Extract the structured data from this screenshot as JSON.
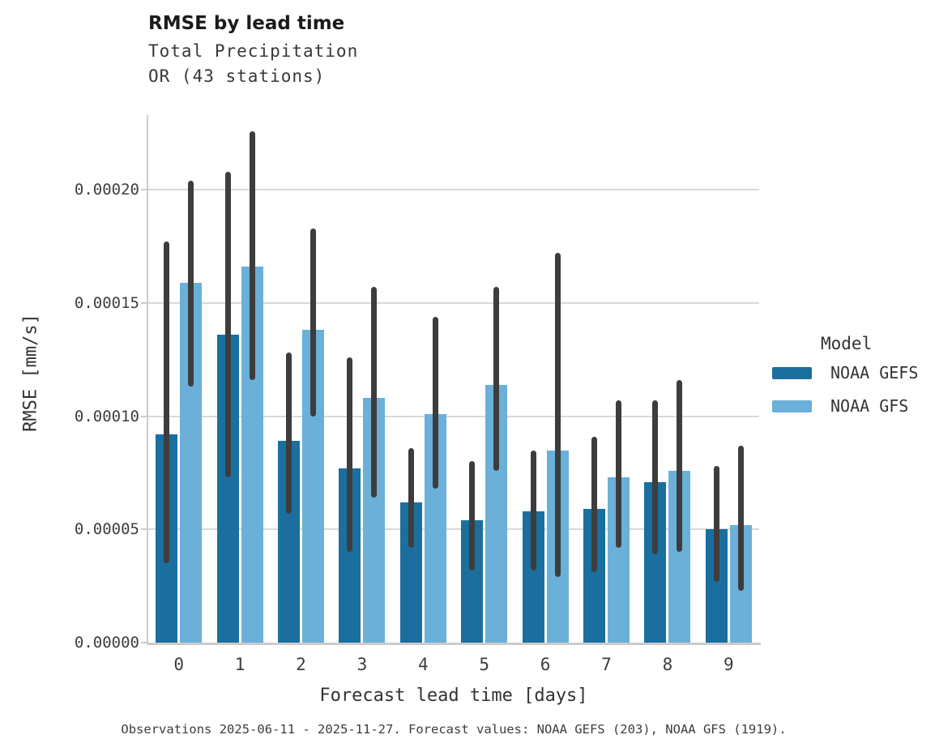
{
  "header": {
    "title": "RMSE by lead time",
    "subtitle_line1": "Total Precipitation",
    "subtitle_line2": "OR (43 stations)"
  },
  "axes": {
    "y_label": "RMSE [mm/s]",
    "x_label": "Forecast lead time [days]"
  },
  "legend": {
    "title": "Model",
    "entries": [
      {
        "label": "NOAA GEFS",
        "color": "#1a6f9f"
      },
      {
        "label": "NOAA GFS",
        "color": "#6bb0d9"
      }
    ]
  },
  "footer": {
    "caption": "Observations 2025-06-11 - 2025-11-27. Forecast values: NOAA GEFS (203), NOAA GFS (1919)."
  },
  "colors": {
    "gefs_bar": "#1a6f9f",
    "gfs_bar": "#6bb0d9",
    "error_bar": "#3d3d3d",
    "gridline": "#d9d9d9",
    "spine": "#cbcbcb",
    "background": "#ffffff"
  },
  "chart_data": {
    "type": "bar",
    "title": "RMSE by lead time",
    "subtitle": "Total Precipitation, OR (43 stations)",
    "xlabel": "Forecast lead time [days]",
    "ylabel": "RMSE [mm/s]",
    "categories": [
      "0",
      "1",
      "2",
      "3",
      "4",
      "5",
      "6",
      "7",
      "8",
      "9"
    ],
    "series": [
      {
        "name": "NOAA GEFS",
        "color": "#1a6f9f",
        "values": [
          9.2e-05,
          0.000136,
          8.9e-05,
          7.7e-05,
          6.2e-05,
          5.4e-05,
          5.8e-05,
          5.9e-05,
          7.1e-05,
          5e-05
        ],
        "err_low": [
          3.5e-05,
          7.3e-05,
          5.7e-05,
          4e-05,
          4.2e-05,
          3.2e-05,
          3.2e-05,
          3.1e-05,
          3.9e-05,
          2.7e-05
        ],
        "err_high": [
          0.000177,
          0.000208,
          0.000128,
          0.000126,
          8.6e-05,
          8e-05,
          8.5e-05,
          9.1e-05,
          0.000107,
          7.8e-05
        ]
      },
      {
        "name": "NOAA GFS",
        "color": "#6bb0d9",
        "values": [
          0.000159,
          0.000166,
          0.000138,
          0.000108,
          0.000101,
          0.000114,
          8.5e-05,
          7.3e-05,
          7.6e-05,
          5.2e-05
        ],
        "err_low": [
          0.000113,
          0.000116,
          0.0001,
          6.4e-05,
          6.8e-05,
          7.6e-05,
          2.9e-05,
          4.2e-05,
          4e-05,
          2.3e-05
        ],
        "err_high": [
          0.000204,
          0.000226,
          0.000183,
          0.000157,
          0.000144,
          0.000157,
          0.000172,
          0.000107,
          0.000116,
          8.7e-05
        ]
      }
    ],
    "ylim": [
      0,
      0.000233
    ],
    "yticks": [
      0,
      5e-05,
      0.0001,
      0.00015,
      0.0002
    ],
    "ytick_labels": [
      "0.00000",
      "0.00005",
      "0.00010",
      "0.00015",
      "0.00020"
    ],
    "grid": "horizontal",
    "legend_position": "right",
    "legend_title": "Model",
    "error_bars": true
  }
}
